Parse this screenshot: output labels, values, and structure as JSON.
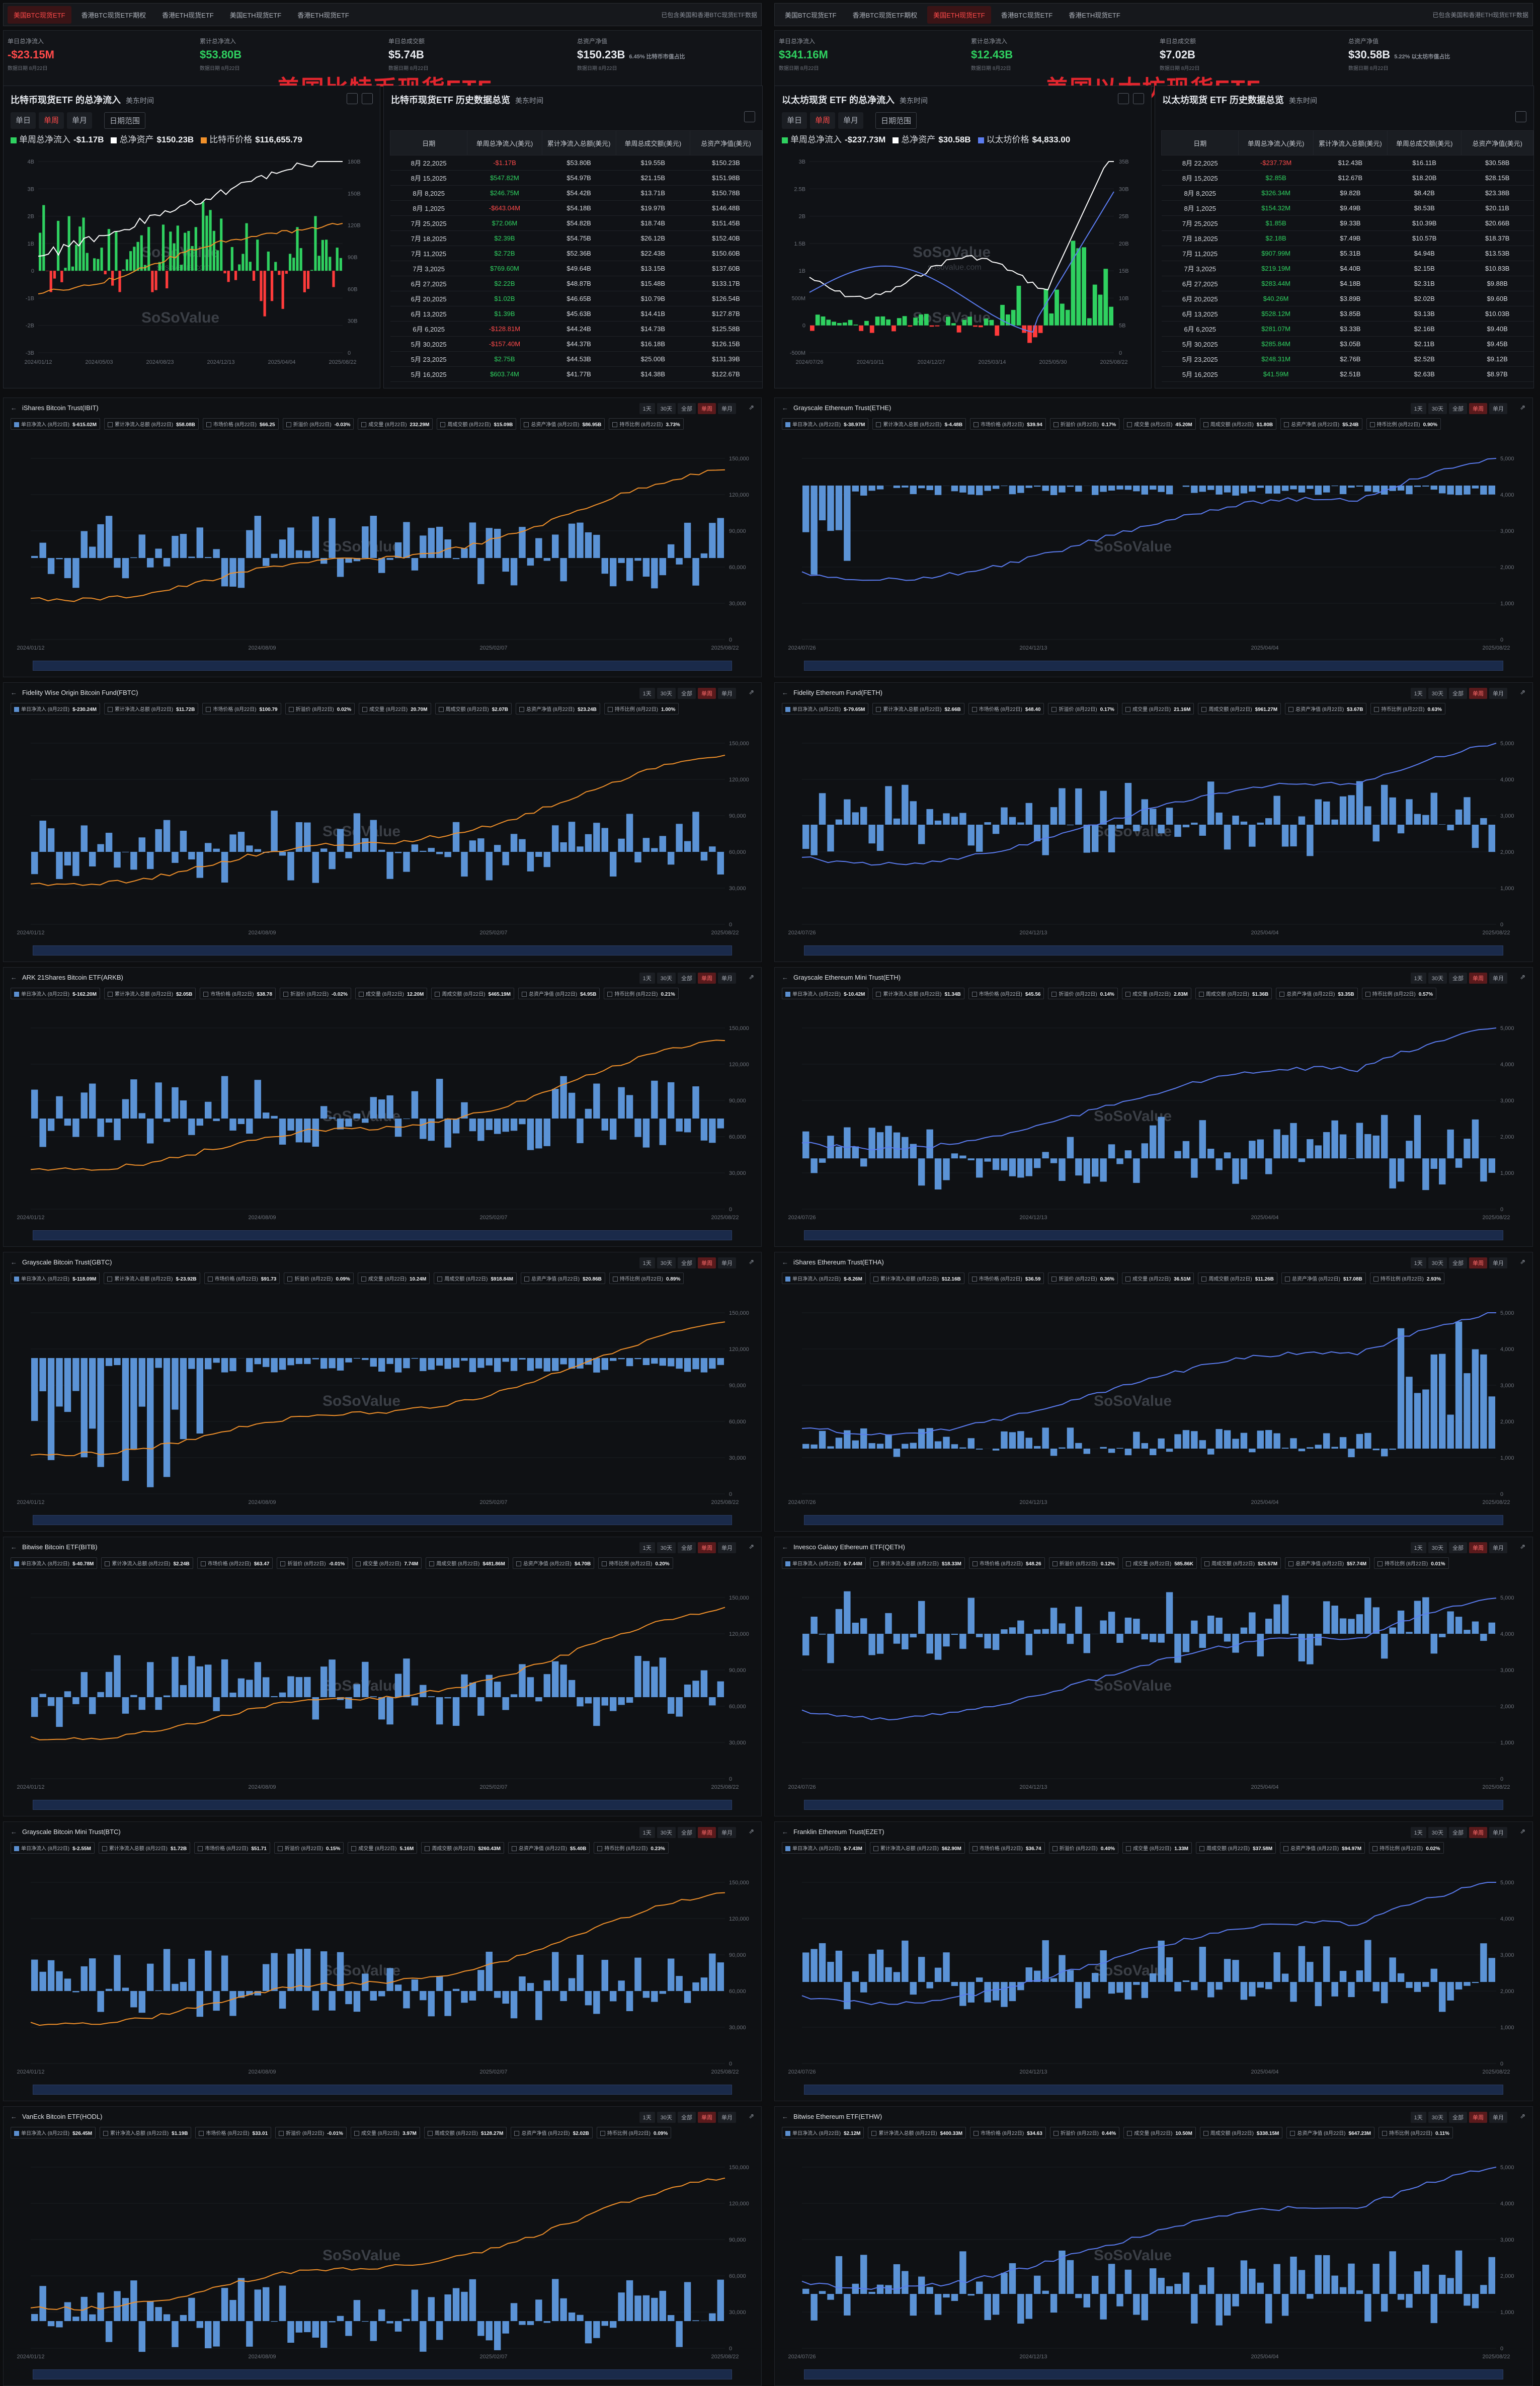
{
  "btc": {
    "tabs": [
      "美国BTC现货ETF",
      "香港BTC现货ETF期权",
      "香港ETH现货ETF",
      "美国ETH现货ETF",
      "香港ETH现货ETF"
    ],
    "active_tab": 0,
    "note": "已包含美国和香港BTC现货ETF数据",
    "stats": [
      {
        "label": "单日总净流入",
        "value": "-$23.15M",
        "sub": "数据日期 8月22日",
        "color": "red"
      },
      {
        "label": "累计总净流入",
        "value": "$53.80B",
        "sub": "数据日期 8月22日",
        "color": "green"
      },
      {
        "label": "单日总成交额",
        "value": "$5.74B",
        "sub": "数据日期 8月22日",
        "color": "white"
      },
      {
        "label": "总资产净值",
        "value": "$150.23B",
        "extra": "6.45% 比特币市值占比",
        "sub": "数据日期 8月22日",
        "color": "white"
      }
    ],
    "headline": "美国比特币现货ETF",
    "panel_title": "比特币现货ETF 的总净流入",
    "panel_note": "美东时间",
    "segments": [
      "单日",
      "单周",
      "单月"
    ],
    "active_segment": 1,
    "ghost_btn": "日期范围",
    "legend": [
      {
        "label": "单周总净流入",
        "value": "-$1.17B",
        "color": "#2fd160"
      },
      {
        "label": "总净资产",
        "value": "$150.23B",
        "color": "#ffffff"
      },
      {
        "label": "比特币价格",
        "value": "$116,655.79",
        "color": "#f0902a"
      }
    ],
    "x_ticks": [
      "2024/01/12",
      "2024/05/03",
      "2024/08/23",
      "2024/12/13",
      "2025/04/04",
      "2025/08/22"
    ],
    "y_left": [
      "4B",
      "3B",
      "2B",
      "1B",
      "0",
      "-1B",
      "-2B",
      "-3B"
    ],
    "y_right": [
      "180B",
      "150B",
      "120B",
      "90B",
      "60B",
      "30B",
      "0"
    ],
    "hist_title": "比特币现货ETF 历史数据总览",
    "hist_note": "美东时间",
    "hist_cols": [
      "日期",
      "单周总净流入(美元)",
      "累计净流入总额(美元)",
      "单周总成交额(美元)",
      "总资产净值(美元)"
    ],
    "hist_rows": [
      [
        "8月 22,2025",
        "-$1.17B",
        "$53.80B",
        "$19.55B",
        "$150.23B"
      ],
      [
        "8月 15,2025",
        "$547.82M",
        "$54.97B",
        "$21.15B",
        "$151.98B"
      ],
      [
        "8月 8,2025",
        "$246.75M",
        "$54.42B",
        "$13.71B",
        "$150.78B"
      ],
      [
        "8月 1,2025",
        "-$643.04M",
        "$54.18B",
        "$19.97B",
        "$146.48B"
      ],
      [
        "7月 25,2025",
        "$72.06M",
        "$54.82B",
        "$18.74B",
        "$151.45B"
      ],
      [
        "7月 18,2025",
        "$2.39B",
        "$54.75B",
        "$26.12B",
        "$152.40B"
      ],
      [
        "7月 11,2025",
        "$2.72B",
        "$52.36B",
        "$22.43B",
        "$150.60B"
      ],
      [
        "7月 3,2025",
        "$769.60M",
        "$49.64B",
        "$13.15B",
        "$137.60B"
      ],
      [
        "6月 27,2025",
        "$2.22B",
        "$48.87B",
        "$15.48B",
        "$133.17B"
      ],
      [
        "6月 20,2025",
        "$1.02B",
        "$46.65B",
        "$10.79B",
        "$126.54B"
      ],
      [
        "6月 13,2025",
        "$1.39B",
        "$45.63B",
        "$14.41B",
        "$127.87B"
      ],
      [
        "6月 6,2025",
        "-$128.81M",
        "$44.24B",
        "$14.73B",
        "$125.58B"
      ],
      [
        "5月 30,2025",
        "-$157.40M",
        "$44.37B",
        "$16.18B",
        "$126.15B"
      ],
      [
        "5月 23,2025",
        "$2.75B",
        "$44.53B",
        "$25.00B",
        "$131.39B"
      ],
      [
        "5月 16,2025",
        "$603.74M",
        "$41.77B",
        "$14.38B",
        "$122.67B"
      ]
    ],
    "watermark": "SoSoValue",
    "watermark_sub": "sosovalue.com",
    "funds": [
      {
        "name": "iShares Bitcoin Trust(IBIT)",
        "metrics": [
          [
            "单日净流入 (8月22日)",
            "$-615.02M"
          ],
          [
            "累计净流入总额 (8月22日)",
            "$58.08B"
          ],
          [
            "市场价格 (8月22日)",
            "$66.25"
          ],
          [
            "折溢价 (8月22日)",
            "-0.03%"
          ],
          [
            "成交量 (8月22日)",
            "232.29M"
          ],
          [
            "周成交额 (8月22日)",
            "$15.09B"
          ],
          [
            "总资产净值 (8月22日)",
            "$86.95B"
          ],
          [
            "持币比例 (8月22日)",
            "3.73%"
          ]
        ]
      },
      {
        "name": "Fidelity Wise Origin Bitcoin Fund(FBTC)",
        "metrics": [
          [
            "单日净流入 (8月22日)",
            "$-230.24M"
          ],
          [
            "累计净流入总额 (8月22日)",
            "$11.72B"
          ],
          [
            "市场价格 (8月22日)",
            "$100.79"
          ],
          [
            "折溢价 (8月22日)",
            "0.02%"
          ],
          [
            "成交量 (8月22日)",
            "20.70M"
          ],
          [
            "周成交额 (8月22日)",
            "$2.07B"
          ],
          [
            "总资产净值 (8月22日)",
            "$23.24B"
          ],
          [
            "持币比例 (8月22日)",
            "1.00%"
          ]
        ]
      },
      {
        "name": "ARK 21Shares Bitcoin ETF(ARKB)",
        "metrics": [
          [
            "单日净流入 (8月22日)",
            "$-162.20M"
          ],
          [
            "累计净流入总额 (8月22日)",
            "$2.05B"
          ],
          [
            "市场价格 (8月22日)",
            "$38.78"
          ],
          [
            "折溢价 (8月22日)",
            "-0.02%"
          ],
          [
            "成交量 (8月22日)",
            "12.20M"
          ],
          [
            "周成交额 (8月22日)",
            "$465.19M"
          ],
          [
            "总资产净值 (8月22日)",
            "$4.95B"
          ],
          [
            "持币比例 (8月22日)",
            "0.21%"
          ]
        ]
      },
      {
        "name": "Grayscale Bitcoin Trust(GBTC)",
        "metrics": [
          [
            "单日净流入 (8月22日)",
            "$-118.09M"
          ],
          [
            "累计净流入总额 (8月22日)",
            "$-23.92B"
          ],
          [
            "市场价格 (8月22日)",
            "$91.73"
          ],
          [
            "折溢价 (8月22日)",
            "0.09%"
          ],
          [
            "成交量 (8月22日)",
            "10.24M"
          ],
          [
            "周成交额 (8月22日)",
            "$918.84M"
          ],
          [
            "总资产净值 (8月22日)",
            "$20.86B"
          ],
          [
            "持币比例 (8月22日)",
            "0.89%"
          ]
        ]
      },
      {
        "name": "Bitwise Bitcoin ETF(BITB)",
        "metrics": [
          [
            "单日净流入 (8月22日)",
            "$-40.78M"
          ],
          [
            "累计净流入总额 (8月22日)",
            "$2.24B"
          ],
          [
            "市场价格 (8月22日)",
            "$63.47"
          ],
          [
            "折溢价 (8月22日)",
            "-0.01%"
          ],
          [
            "成交量 (8月22日)",
            "7.74M"
          ],
          [
            "周成交额 (8月22日)",
            "$481.86M"
          ],
          [
            "总资产净值 (8月22日)",
            "$4.70B"
          ],
          [
            "持币比例 (8月22日)",
            "0.20%"
          ]
        ]
      },
      {
        "name": "Grayscale Bitcoin Mini Trust(BTC)",
        "metrics": [
          [
            "单日净流入 (8月22日)",
            "$-2.55M"
          ],
          [
            "累计净流入总额 (8月22日)",
            "$1.72B"
          ],
          [
            "市场价格 (8月22日)",
            "$51.71"
          ],
          [
            "折溢价 (8月22日)",
            "0.15%"
          ],
          [
            "成交量 (8月22日)",
            "5.16M"
          ],
          [
            "周成交额 (8月22日)",
            "$260.43M"
          ],
          [
            "总资产净值 (8月22日)",
            "$5.40B"
          ],
          [
            "持币比例 (8月22日)",
            "0.23%"
          ]
        ]
      },
      {
        "name": "VanEck Bitcoin ETF(HODL)",
        "metrics": [
          [
            "单日净流入 (8月22日)",
            "$26.45M"
          ],
          [
            "累计净流入总额 (8月22日)",
            "$1.19B"
          ],
          [
            "市场价格 (8月22日)",
            "$33.01"
          ],
          [
            "折溢价 (8月22日)",
            "-0.01%"
          ],
          [
            "成交量 (8月22日)",
            "3.97M"
          ],
          [
            "周成交额 (8月22日)",
            "$128.27M"
          ],
          [
            "总资产净值 (8月22日)",
            "$2.02B"
          ],
          [
            "持币比例 (8月22日)",
            "0.09%"
          ]
        ]
      }
    ],
    "fund_x_ticks": [
      "2024/01/12",
      "2024/08/09",
      "2025/02/07",
      "2025/08/22"
    ],
    "fund_y_right": [
      "150,000",
      "120,000",
      "90,000",
      "60,000",
      "30,000",
      "0"
    ]
  },
  "eth": {
    "tabs": [
      "美国BTC现货ETF",
      "香港BTC现货ETF期权",
      "美国ETH现货ETF",
      "香港BTC现货ETF",
      "香港ETH现货ETF"
    ],
    "active_tab": 2,
    "note": "已包含美国和香港ETH现货ETF数据",
    "stats": [
      {
        "label": "单日总净流入",
        "value": "$341.16M",
        "sub": "数据日期 8月22日",
        "color": "green"
      },
      {
        "label": "累计总净流入",
        "value": "$12.43B",
        "sub": "数据日期 8月22日",
        "color": "green"
      },
      {
        "label": "单日总成交额",
        "value": "$7.02B",
        "sub": "数据日期 8月22日",
        "color": "white"
      },
      {
        "label": "总资产净值",
        "value": "$30.58B",
        "extra": "5.22% 以太坊市值占比",
        "sub": "数据日期 8月22日",
        "color": "white"
      }
    ],
    "headline": "美国以太坊现货ETF",
    "panel_title": "以太坊现货 ETF 的总净流入",
    "panel_note": "美东时间",
    "segments": [
      "单日",
      "单周",
      "单月"
    ],
    "active_segment": 1,
    "ghost_btn": "日期范围",
    "legend": [
      {
        "label": "单周总净流入",
        "value": "-$237.73M",
        "color": "#2fd160"
      },
      {
        "label": "总净资产",
        "value": "$30.58B",
        "color": "#ffffff"
      },
      {
        "label": "以太坊价格",
        "value": "$4,833.00",
        "color": "#5b7cf0"
      }
    ],
    "x_ticks": [
      "2024/07/26",
      "2024/10/11",
      "2024/12/27",
      "2025/03/14",
      "2025/05/30",
      "2025/08/22"
    ],
    "y_left": [
      "3B",
      "2.5B",
      "2B",
      "1.5B",
      "1B",
      "500M",
      "0",
      "-500M"
    ],
    "y_right": [
      "35B",
      "30B",
      "25B",
      "20B",
      "15B",
      "10B",
      "5B",
      "0"
    ],
    "hist_title": "以太坊现货 ETF 历史数据总览",
    "hist_note": "美东时间",
    "hist_cols": [
      "日期",
      "单周总净流入(美元)",
      "累计净流入总额(美元)",
      "单周总成交额(美元)",
      "总资产净值(美元)"
    ],
    "hist_rows": [
      [
        "8月 22,2025",
        "-$237.73M",
        "$12.43B",
        "$16.11B",
        "$30.58B"
      ],
      [
        "8月 15,2025",
        "$2.85B",
        "$12.67B",
        "$18.20B",
        "$28.15B"
      ],
      [
        "8月 8,2025",
        "$326.34M",
        "$9.82B",
        "$8.42B",
        "$23.38B"
      ],
      [
        "8月 1,2025",
        "$154.32M",
        "$9.49B",
        "$8.53B",
        "$20.11B"
      ],
      [
        "7月 25,2025",
        "$1.85B",
        "$9.33B",
        "$10.39B",
        "$20.66B"
      ],
      [
        "7月 18,2025",
        "$2.18B",
        "$7.49B",
        "$10.57B",
        "$18.37B"
      ],
      [
        "7月 11,2025",
        "$907.99M",
        "$5.31B",
        "$4.94B",
        "$13.53B"
      ],
      [
        "7月 3,2025",
        "$219.19M",
        "$4.40B",
        "$2.15B",
        "$10.83B"
      ],
      [
        "6月 27,2025",
        "$283.44M",
        "$4.18B",
        "$2.31B",
        "$9.88B"
      ],
      [
        "6月 20,2025",
        "$40.26M",
        "$3.89B",
        "$2.02B",
        "$9.60B"
      ],
      [
        "6月 13,2025",
        "$528.12M",
        "$3.85B",
        "$3.13B",
        "$10.03B"
      ],
      [
        "6月 6,2025",
        "$281.07M",
        "$3.33B",
        "$2.16B",
        "$9.40B"
      ],
      [
        "5月 30,2025",
        "$285.84M",
        "$3.05B",
        "$2.11B",
        "$9.45B"
      ],
      [
        "5月 23,2025",
        "$248.31M",
        "$2.76B",
        "$2.52B",
        "$9.12B"
      ],
      [
        "5月 16,2025",
        "$41.59M",
        "$2.51B",
        "$2.63B",
        "$8.97B"
      ]
    ],
    "watermark": "SoSoValue",
    "watermark_sub": "sosovalue.com",
    "funds": [
      {
        "name": "Grayscale Ethereum Trust(ETHE)",
        "metrics": [
          [
            "单日净流入 (8月22日)",
            "$-38.97M"
          ],
          [
            "累计净流入总额 (8月22日)",
            "$-4.48B"
          ],
          [
            "市场价格 (8月22日)",
            "$39.94"
          ],
          [
            "折溢价 (8月22日)",
            "0.17%"
          ],
          [
            "成交量 (8月22日)",
            "45.20M"
          ],
          [
            "周成交额 (8月22日)",
            "$1.80B"
          ],
          [
            "总资产净值 (8月22日)",
            "$5.24B"
          ],
          [
            "持币比例 (8月22日)",
            "0.90%"
          ]
        ]
      },
      {
        "name": "Fidelity Ethereum Fund(FETH)",
        "metrics": [
          [
            "单日净流入 (8月22日)",
            "$-79.65M"
          ],
          [
            "累计净流入总额 (8月22日)",
            "$2.66B"
          ],
          [
            "市场价格 (8月22日)",
            "$48.40"
          ],
          [
            "折溢价 (8月22日)",
            "0.17%"
          ],
          [
            "成交量 (8月22日)",
            "21.16M"
          ],
          [
            "周成交额 (8月22日)",
            "$961.27M"
          ],
          [
            "总资产净值 (8月22日)",
            "$3.67B"
          ],
          [
            "持币比例 (8月22日)",
            "0.63%"
          ]
        ]
      },
      {
        "name": "Grayscale Ethereum Mini Trust(ETH)",
        "metrics": [
          [
            "单日净流入 (8月22日)",
            "$-10.42M"
          ],
          [
            "累计净流入总额 (8月22日)",
            "$1.34B"
          ],
          [
            "市场价格 (8月22日)",
            "$45.56"
          ],
          [
            "折溢价 (8月22日)",
            "0.14%"
          ],
          [
            "成交量 (8月22日)",
            "2.83M"
          ],
          [
            "周成交额 (8月22日)",
            "$1.36B"
          ],
          [
            "总资产净值 (8月22日)",
            "$3.35B"
          ],
          [
            "持币比例 (8月22日)",
            "0.57%"
          ]
        ]
      },
      {
        "name": "iShares Ethereum Trust(ETHA)",
        "metrics": [
          [
            "单日净流入 (8月22日)",
            "$-8.26M"
          ],
          [
            "累计净流入总额 (8月22日)",
            "$12.16B"
          ],
          [
            "市场价格 (8月22日)",
            "$36.59"
          ],
          [
            "折溢价 (8月22日)",
            "0.36%"
          ],
          [
            "成交量 (8月22日)",
            "36.51M"
          ],
          [
            "周成交额 (8月22日)",
            "$11.26B"
          ],
          [
            "总资产净值 (8月22日)",
            "$17.08B"
          ],
          [
            "持币比例 (8月22日)",
            "2.93%"
          ]
        ]
      },
      {
        "name": "Invesco Galaxy Ethereum ETF(QETH)",
        "metrics": [
          [
            "单日净流入 (8月22日)",
            "$-7.44M"
          ],
          [
            "累计净流入总额 (8月22日)",
            "$18.33M"
          ],
          [
            "市场价格 (8月22日)",
            "$48.26"
          ],
          [
            "折溢价 (8月22日)",
            "0.12%"
          ],
          [
            "成交量 (8月22日)",
            "585.86K"
          ],
          [
            "周成交额 (8月22日)",
            "$25.57M"
          ],
          [
            "总资产净值 (8月22日)",
            "$57.74M"
          ],
          [
            "持币比例 (8月22日)",
            "0.01%"
          ]
        ]
      },
      {
        "name": "Franklin Ethereum Trust(EZET)",
        "metrics": [
          [
            "单日净流入 (8月22日)",
            "$-7.43M"
          ],
          [
            "累计净流入总额 (8月22日)",
            "$62.90M"
          ],
          [
            "市场价格 (8月22日)",
            "$36.74"
          ],
          [
            "折溢价 (8月22日)",
            "0.40%"
          ],
          [
            "成交量 (8月22日)",
            "1.33M"
          ],
          [
            "周成交额 (8月22日)",
            "$37.58M"
          ],
          [
            "总资产净值 (8月22日)",
            "$94.97M"
          ],
          [
            "持币比例 (8月22日)",
            "0.02%"
          ]
        ]
      },
      {
        "name": "Bitwise Ethereum ETF(ETHW)",
        "metrics": [
          [
            "单日净流入 (8月22日)",
            "$2.12M"
          ],
          [
            "累计净流入总额 (8月22日)",
            "$400.33M"
          ],
          [
            "市场价格 (8月22日)",
            "$34.63"
          ],
          [
            "折溢价 (8月22日)",
            "0.44%"
          ],
          [
            "成交量 (8月22日)",
            "10.50M"
          ],
          [
            "周成交额 (8月22日)",
            "$338.15M"
          ],
          [
            "总资产净值 (8月22日)",
            "$647.23M"
          ],
          [
            "持币比例 (8月22日)",
            "0.11%"
          ]
        ]
      }
    ],
    "fund_x_ticks": [
      "2024/07/26",
      "2024/12/13",
      "2025/04/04",
      "2025/08/22"
    ],
    "fund_y_right": [
      "5,000",
      "4,000",
      "3,000",
      "2,000",
      "1,000",
      "0"
    ]
  },
  "ranges": [
    "1天",
    "30天",
    "全部",
    "单周",
    "单月"
  ],
  "active_range": 3,
  "colors": {
    "bar_up": "#2fd160",
    "bar_down": "#ff3b3b",
    "fund_bar": "#5b93d6",
    "btc_line": "#f0902a",
    "eth_line": "#5b7cf0",
    "asset_line": "#ffffff"
  }
}
